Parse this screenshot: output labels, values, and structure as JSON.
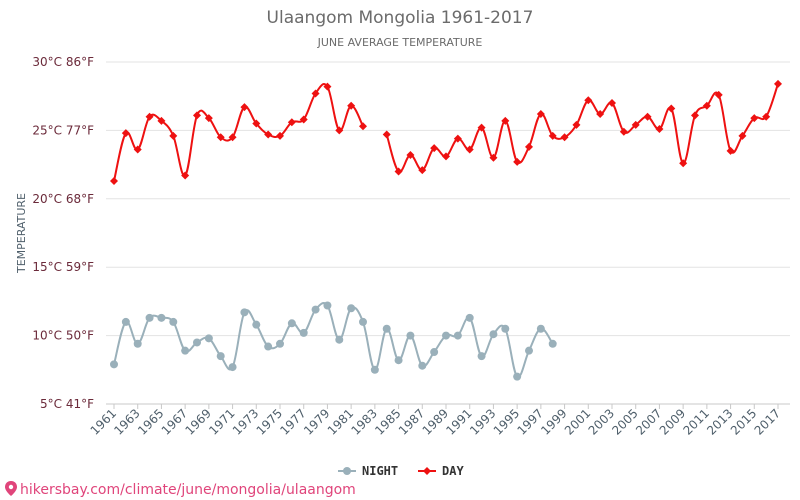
{
  "chart_data": {
    "type": "line",
    "title": "Ulaangom Mongolia 1961-2017",
    "subtitle": "JUNE AVERAGE TEMPERATURE",
    "ylabel": "TEMPERATURE",
    "xlabel": "",
    "ylim": [
      5,
      30
    ],
    "y_ticks": [
      "5°C 41°F",
      "10°C 50°F",
      "15°C 59°F",
      "20°C 68°F",
      "25°C 77°F",
      "30°C 86°F"
    ],
    "y_tick_values": [
      5,
      10,
      15,
      20,
      25,
      30
    ],
    "x_tick_labels": [
      "1961",
      "1963",
      "1965",
      "1967",
      "1969",
      "1971",
      "1973",
      "1975",
      "1977",
      "1979",
      "1981",
      "1983",
      "1985",
      "1987",
      "1989",
      "1991",
      "1993",
      "1995",
      "1997",
      "1999",
      "2001",
      "2003",
      "2005",
      "2007",
      "2009",
      "2011",
      "2013",
      "2015",
      "2017"
    ],
    "x_tick_years": [
      1961,
      1963,
      1965,
      1967,
      1969,
      1971,
      1973,
      1975,
      1977,
      1979,
      1981,
      1983,
      1985,
      1987,
      1989,
      1991,
      1993,
      1995,
      1997,
      1999,
      2001,
      2003,
      2005,
      2007,
      2009,
      2011,
      2013,
      2015,
      2017
    ],
    "xlim": [
      1961,
      2017
    ],
    "grid": true,
    "legend_position": "bottom-center",
    "series": [
      {
        "name": "NIGHT",
        "color": "#9ab0ba",
        "marker": "circle",
        "points": [
          [
            1961,
            7.9
          ],
          [
            1962,
            11.0
          ],
          [
            1963,
            9.4
          ],
          [
            1964,
            11.3
          ],
          [
            1965,
            11.3
          ],
          [
            1966,
            11.0
          ],
          [
            1967,
            8.9
          ],
          [
            1968,
            9.5
          ],
          [
            1969,
            9.8
          ],
          [
            1970,
            8.5
          ],
          [
            1971,
            7.7
          ],
          [
            1972,
            11.7
          ],
          [
            1973,
            10.8
          ],
          [
            1974,
            9.2
          ],
          [
            1975,
            9.4
          ],
          [
            1976,
            10.9
          ],
          [
            1977,
            10.2
          ],
          [
            1978,
            11.9
          ],
          [
            1979,
            12.2
          ],
          [
            1980,
            9.7
          ],
          [
            1981,
            12.0
          ],
          [
            1982,
            11.0
          ],
          [
            1983,
            7.5
          ],
          [
            1984,
            10.5
          ],
          [
            1985,
            8.2
          ],
          [
            1986,
            10.0
          ],
          [
            1987,
            7.8
          ],
          [
            1988,
            8.8
          ],
          [
            1989,
            10.0
          ],
          [
            1990,
            10.0
          ],
          [
            1991,
            11.3
          ],
          [
            1992,
            8.5
          ],
          [
            1993,
            10.1
          ],
          [
            1994,
            10.5
          ],
          [
            1995,
            7.0
          ],
          [
            1996,
            8.9
          ],
          [
            1997,
            10.5
          ],
          [
            1998,
            9.4
          ]
        ]
      },
      {
        "name": "DAY",
        "color": "#ee1111",
        "marker": "diamond",
        "points": [
          [
            1961,
            21.3
          ],
          [
            1962,
            24.8
          ],
          [
            1963,
            23.6
          ],
          [
            1964,
            26.0
          ],
          [
            1965,
            25.7
          ],
          [
            1966,
            24.6
          ],
          [
            1967,
            21.7
          ],
          [
            1968,
            26.1
          ],
          [
            1969,
            25.9
          ],
          [
            1970,
            24.5
          ],
          [
            1971,
            24.5
          ],
          [
            1972,
            26.7
          ],
          [
            1973,
            25.5
          ],
          [
            1974,
            24.7
          ],
          [
            1975,
            24.6
          ],
          [
            1976,
            25.6
          ],
          [
            1977,
            25.8
          ],
          [
            1978,
            27.7
          ],
          [
            1979,
            28.2
          ],
          [
            1980,
            25.0
          ],
          [
            1981,
            26.8
          ],
          [
            1982,
            25.3
          ],
          [
            1983,
            null
          ],
          [
            1984,
            24.7
          ],
          [
            1985,
            22.0
          ],
          [
            1986,
            23.2
          ],
          [
            1987,
            22.1
          ],
          [
            1988,
            23.7
          ],
          [
            1989,
            23.1
          ],
          [
            1990,
            24.4
          ],
          [
            1991,
            23.6
          ],
          [
            1992,
            25.2
          ],
          [
            1993,
            23.0
          ],
          [
            1994,
            25.7
          ],
          [
            1995,
            22.7
          ],
          [
            1996,
            23.8
          ],
          [
            1997,
            26.2
          ],
          [
            1998,
            24.6
          ],
          [
            1999,
            24.5
          ],
          [
            2000,
            25.4
          ],
          [
            2001,
            27.2
          ],
          [
            2002,
            26.2
          ],
          [
            2003,
            27.0
          ],
          [
            2004,
            24.9
          ],
          [
            2005,
            25.4
          ],
          [
            2006,
            26.0
          ],
          [
            2007,
            25.1
          ],
          [
            2008,
            26.6
          ],
          [
            2009,
            22.6
          ],
          [
            2010,
            26.1
          ],
          [
            2011,
            26.8
          ],
          [
            2012,
            27.6
          ],
          [
            2013,
            23.5
          ],
          [
            2014,
            24.6
          ],
          [
            2015,
            25.9
          ],
          [
            2016,
            26.0
          ],
          [
            2017,
            28.4
          ]
        ]
      }
    ]
  },
  "source": "hikersbay.com/climate/june/mongolia/ulaangom"
}
